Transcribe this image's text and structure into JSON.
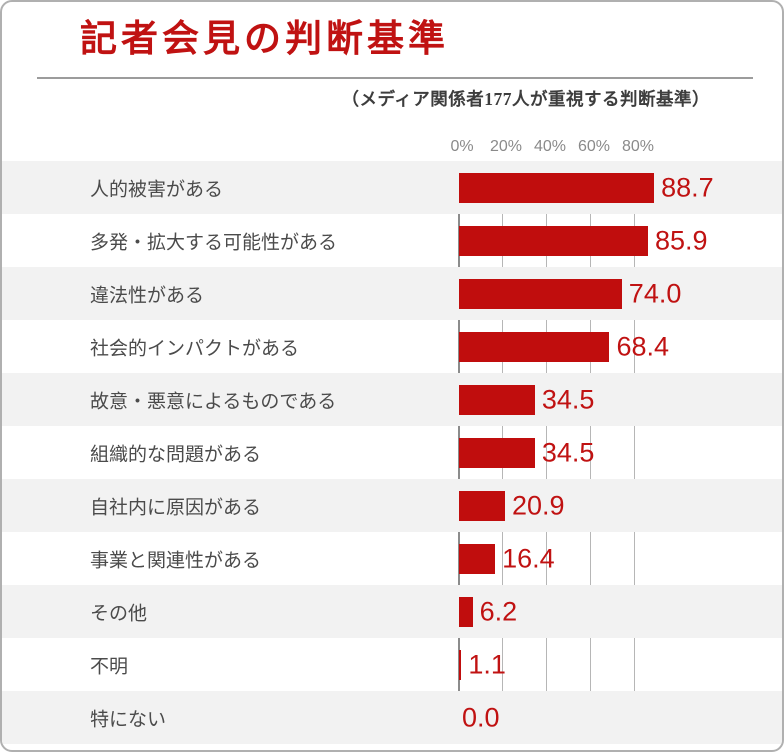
{
  "header": {
    "title": "記者会見の判断基準",
    "subtitle": "（メディア関係者177人が重視する判断基準）"
  },
  "colors": {
    "bar": "#c00d0d",
    "title": "#c01212",
    "value_label": "#c01212",
    "row_stripe": "#f2f2f2",
    "category_label": "#4b4b4b",
    "axis_label": "#8a8a8a",
    "card_border": "#b0b0b0"
  },
  "chart_data": {
    "type": "bar",
    "orientation": "horizontal",
    "title": "記者会見の判断基準",
    "subtitle": "（メディア関係者177人が重視する判断基準）",
    "categories": [
      "人的被害がある",
      "多発・拡大する可能性がある",
      "違法性がある",
      "社会的インパクトがある",
      "故意・悪意によるものである",
      "組織的な問題がある",
      "自社内に原因がある",
      "事業と関連性がある",
      "その他",
      "不明",
      "特にない"
    ],
    "values": [
      88.7,
      85.9,
      74.0,
      68.4,
      34.5,
      34.5,
      20.9,
      16.4,
      6.2,
      1.1,
      0.0
    ],
    "value_decimals": 1,
    "xlabel": "",
    "ylabel": "",
    "xlim": [
      0,
      100
    ],
    "x_ticks": [
      {
        "value": 0,
        "label": "0%"
      },
      {
        "value": 20,
        "label": "20%"
      },
      {
        "value": 40,
        "label": "40%"
      },
      {
        "value": 60,
        "label": "60%"
      },
      {
        "value": 80,
        "label": "80%"
      }
    ],
    "grid": true,
    "value_labels": true,
    "legend": "none",
    "stripe_rows": true
  }
}
